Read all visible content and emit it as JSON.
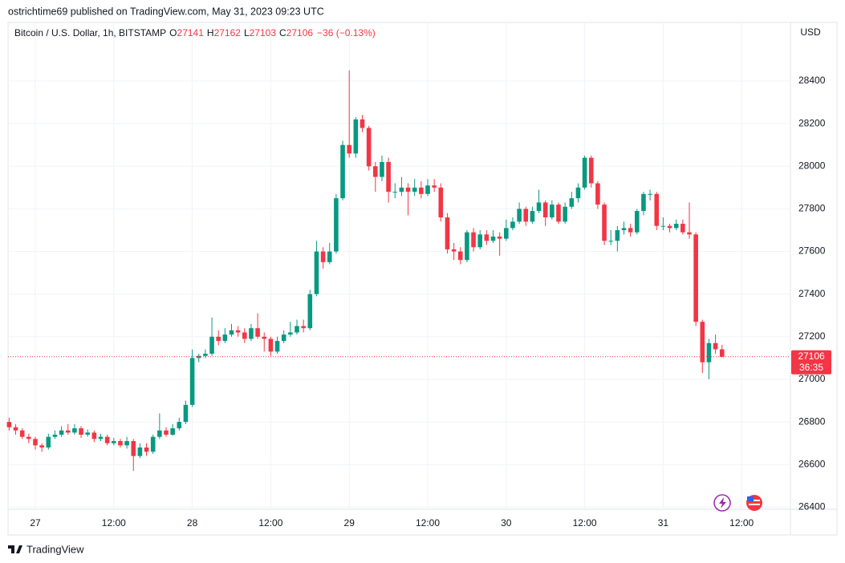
{
  "header": {
    "publisher": "ostrichtime69 published on TradingView.com, May 31, 2023 09:23 UTC"
  },
  "chart_data": {
    "type": "candlestick",
    "title": "Bitcoin / U.S. Dollar, 1h, BITSTAMP",
    "legend_labels": [
      "O",
      "H",
      "L",
      "C"
    ],
    "change": "−36 (−0.13%)",
    "currency": "USD",
    "countdown": "36:35",
    "categories": [
      null,
      null,
      null,
      null,
      "27",
      null,
      null,
      null,
      null,
      null,
      null,
      null,
      null,
      null,
      null,
      null,
      "12:00",
      null,
      null,
      null,
      null,
      null,
      null,
      null,
      null,
      null,
      null,
      null,
      "28",
      null,
      null,
      null,
      null,
      null,
      null,
      null,
      null,
      null,
      null,
      null,
      "12:00",
      null,
      null,
      null,
      null,
      null,
      null,
      null,
      null,
      null,
      null,
      null,
      "29",
      null,
      null,
      null,
      null,
      null,
      null,
      null,
      null,
      null,
      null,
      null,
      "12:00",
      null,
      null,
      null,
      null,
      null,
      null,
      null,
      null,
      null,
      null,
      null,
      "30",
      null,
      null,
      null,
      null,
      null,
      null,
      null,
      null,
      null,
      null,
      null,
      "12:00",
      null,
      null,
      null,
      null,
      null,
      null,
      null,
      null,
      null,
      null,
      null,
      "31",
      null,
      null,
      null,
      null,
      null,
      null,
      null,
      null,
      null,
      null,
      null,
      "12:00"
    ],
    "open": [
      26800,
      26775,
      26760,
      26730,
      26720,
      26690,
      26680,
      26730,
      26740,
      26760,
      26750,
      26770,
      26740,
      26750,
      26720,
      26730,
      26700,
      26710,
      26690,
      26710,
      26640,
      26680,
      26660,
      26730,
      26760,
      26740,
      26770,
      26800,
      26880,
      27100,
      27110,
      27120,
      27200,
      27180,
      27210,
      27230,
      27220,
      27190,
      27240,
      27200,
      27190,
      27130,
      27180,
      27210,
      27220,
      27250,
      27240,
      27400,
      27600,
      27550,
      27600,
      27850,
      28100,
      28060,
      28220,
      28180,
      28000,
      27950,
      28020,
      27880,
      27880,
      27900,
      27880,
      27900,
      27870,
      27910,
      27900,
      27760,
      27610,
      27600,
      27560,
      27690,
      27620,
      27680,
      27650,
      27670,
      27660,
      27710,
      27740,
      27800,
      27740,
      27790,
      27830,
      27760,
      27820,
      27740,
      27810,
      27850,
      27900,
      28040,
      27920,
      27820,
      27650,
      27650,
      27700,
      27710,
      27690,
      27790,
      27870,
      27870,
      27720,
      27720,
      27710,
      27730,
      27690,
      27680,
      27270,
      27080,
      27170,
      27141,
      null,
      null,
      null
    ],
    "high": [
      26820,
      26790,
      26770,
      26745,
      26730,
      26700,
      26745,
      26760,
      26780,
      26790,
      26790,
      26780,
      26765,
      26760,
      26745,
      26740,
      26725,
      26720,
      26730,
      26720,
      26700,
      26700,
      26740,
      26840,
      26775,
      26790,
      26820,
      26900,
      27140,
      27120,
      27140,
      27290,
      27230,
      27240,
      27260,
      27250,
      27240,
      27260,
      27310,
      27220,
      27200,
      27200,
      27230,
      27270,
      27280,
      27280,
      27420,
      27650,
      27620,
      27640,
      27870,
      28120,
      28450,
      28230,
      28240,
      28190,
      28020,
      28050,
      28040,
      27920,
      27950,
      27920,
      27940,
      27930,
      27940,
      27940,
      27920,
      27780,
      27640,
      27620,
      27700,
      27710,
      27700,
      27700,
      27700,
      27690,
      27750,
      27760,
      27830,
      27810,
      27810,
      27890,
      27840,
      27840,
      27830,
      27830,
      27880,
      27920,
      28050,
      28050,
      27930,
      27830,
      27700,
      27720,
      27740,
      27730,
      27800,
      27880,
      27890,
      27880,
      27760,
      27730,
      27750,
      27750,
      27830,
      27690,
      27280,
      27190,
      27210,
      27162,
      null,
      null,
      null
    ],
    "low": [
      26760,
      26740,
      26720,
      26700,
      26670,
      26660,
      26670,
      26720,
      26730,
      26740,
      26740,
      26725,
      26730,
      26705,
      26710,
      26690,
      26690,
      26680,
      26675,
      26570,
      26630,
      26640,
      26650,
      26720,
      26730,
      26735,
      26760,
      26790,
      26870,
      27080,
      27100,
      27110,
      27160,
      27170,
      27200,
      27200,
      27170,
      27180,
      27190,
      27130,
      27110,
      27120,
      27170,
      27200,
      27210,
      27220,
      27230,
      27390,
      27520,
      27540,
      27590,
      27840,
      28040,
      28040,
      28160,
      27980,
      27880,
      27930,
      27830,
      27850,
      27860,
      27770,
      27860,
      27850,
      27860,
      27880,
      27740,
      27590,
      27560,
      27540,
      27550,
      27600,
      27610,
      27630,
      27640,
      27580,
      27650,
      27700,
      27730,
      27720,
      27730,
      27780,
      27720,
      27750,
      27730,
      27730,
      27800,
      27830,
      27890,
      27900,
      27800,
      27630,
      27630,
      27600,
      27680,
      27670,
      27680,
      27770,
      27840,
      27700,
      27700,
      27690,
      27700,
      27680,
      27660,
      27250,
      27030,
      27000,
      27120,
      27103,
      null,
      null,
      null
    ],
    "close": [
      26775,
      26760,
      26730,
      26720,
      26690,
      26680,
      26730,
      26740,
      26760,
      26750,
      26770,
      26740,
      26750,
      26720,
      26730,
      26700,
      26710,
      26690,
      26710,
      26640,
      26680,
      26660,
      26730,
      26760,
      26740,
      26770,
      26800,
      26880,
      27100,
      27110,
      27120,
      27200,
      27180,
      27210,
      27230,
      27220,
      27190,
      27240,
      27200,
      27190,
      27130,
      27180,
      27210,
      27220,
      27250,
      27240,
      27400,
      27600,
      27550,
      27600,
      27850,
      28100,
      28060,
      28220,
      28180,
      28000,
      27950,
      28020,
      27880,
      27880,
      27900,
      27880,
      27900,
      27870,
      27910,
      27900,
      27760,
      27610,
      27600,
      27560,
      27690,
      27620,
      27680,
      27650,
      27670,
      27660,
      27710,
      27740,
      27800,
      27740,
      27790,
      27830,
      27760,
      27820,
      27740,
      27810,
      27850,
      27900,
      28040,
      27920,
      27820,
      27650,
      27650,
      27700,
      27710,
      27690,
      27790,
      27870,
      27870,
      27720,
      27720,
      27710,
      27730,
      27690,
      27680,
      27270,
      27080,
      27170,
      27141,
      27106,
      null,
      null,
      null
    ],
    "up_color": "#089981",
    "down_color": "#f23645",
    "ylim": [
      26390,
      28675
    ],
    "yticks": [
      26400,
      26600,
      26800,
      27000,
      27200,
      27400,
      27600,
      27800,
      28000,
      28200,
      28400
    ],
    "grid": true
  },
  "footer": {
    "brand": "TradingView"
  }
}
